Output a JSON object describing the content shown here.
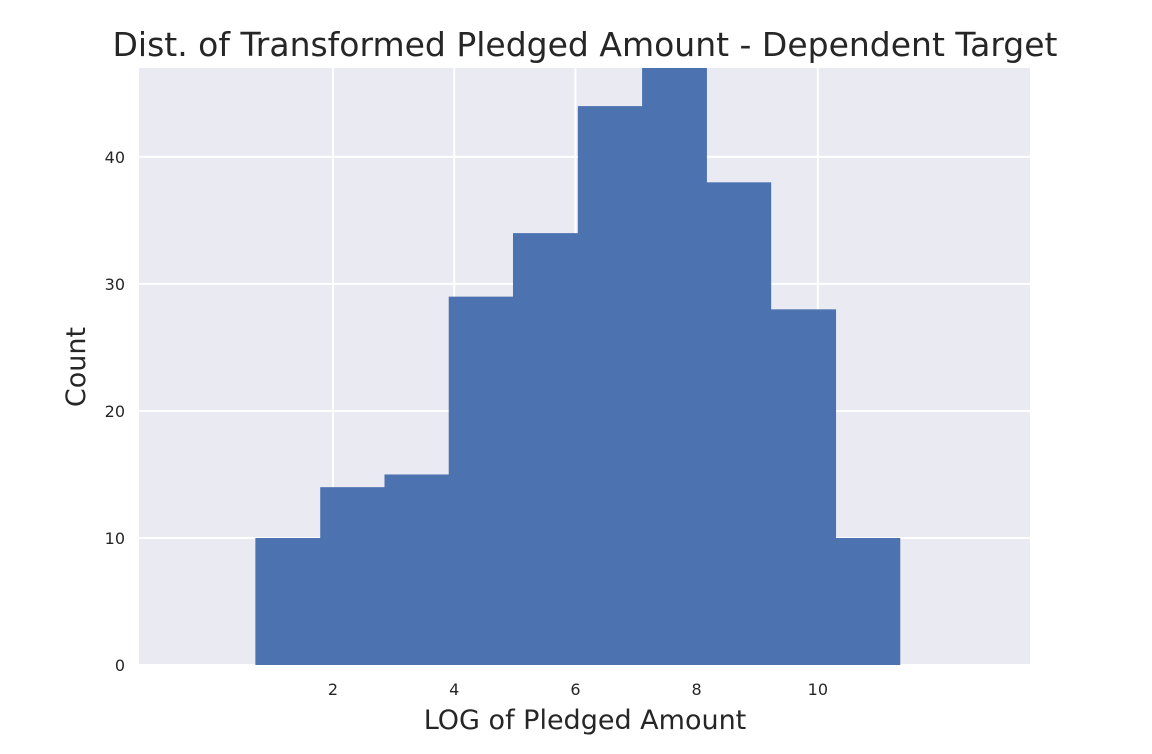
{
  "chart_data": {
    "type": "bar",
    "title": "Dist. of Transformed Pledged Amount - Dependent Target",
    "xlabel": "LOG of Pledged Amount",
    "ylabel": "Count",
    "xlim": [
      -1.2,
      13.5
    ],
    "ylim": [
      0,
      47
    ],
    "xticks": [
      2,
      4,
      6,
      8,
      10
    ],
    "yticks": [
      0,
      10,
      20,
      30,
      40
    ],
    "grid": true,
    "colors": {
      "bar": "#4c72b0",
      "background": "#eaeaf2",
      "grid": "#ffffff"
    },
    "bins": [
      {
        "x0": 0.72,
        "x1": 1.79,
        "count": 10
      },
      {
        "x0": 1.79,
        "x1": 2.85,
        "count": 14
      },
      {
        "x0": 2.85,
        "x1": 3.91,
        "count": 15
      },
      {
        "x0": 3.91,
        "x1": 4.97,
        "count": 29
      },
      {
        "x0": 4.97,
        "x1": 6.04,
        "count": 34
      },
      {
        "x0": 6.04,
        "x1": 7.1,
        "count": 44
      },
      {
        "x0": 7.1,
        "x1": 8.16,
        "count": 47
      },
      {
        "x0": 8.16,
        "x1": 9.22,
        "count": 38
      },
      {
        "x0": 9.22,
        "x1": 10.29,
        "count": 28
      },
      {
        "x0": 10.29,
        "x1": 11.35,
        "count": 10
      }
    ]
  }
}
